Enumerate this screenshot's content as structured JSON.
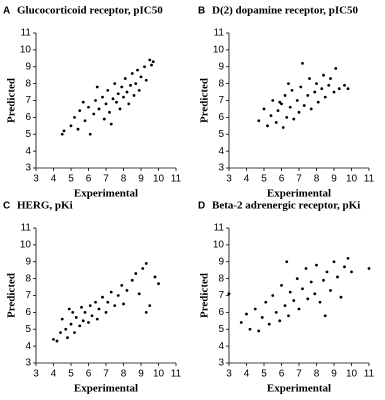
{
  "chart_data": [
    {
      "type": "scatter",
      "label": "A",
      "title": "Glucocorticoid receptor, pIC50",
      "xlabel": "Experimental",
      "ylabel": "Predicted",
      "color": "#000000",
      "xlim": [
        3,
        11
      ],
      "ylim": [
        3,
        11
      ],
      "xticks": [
        3,
        4,
        5,
        6,
        7,
        8,
        9,
        10,
        11
      ],
      "yticks": [
        3,
        4,
        5,
        6,
        7,
        8,
        9,
        10,
        11
      ],
      "x": [
        4.5,
        4.6,
        5.0,
        5.2,
        5.4,
        5.5,
        5.8,
        6.0,
        6.1,
        6.3,
        6.4,
        6.6,
        6.8,
        6.9,
        7.0,
        7.1,
        7.2,
        7.4,
        7.5,
        7.6,
        7.7,
        7.8,
        7.9,
        8.0,
        8.1,
        8.2,
        8.3,
        8.4,
        8.5,
        8.6,
        8.7,
        8.8,
        8.9,
        9.0,
        9.2,
        9.3,
        9.5,
        9.6,
        9.7,
        6.5,
        5.7,
        7.3
      ],
      "y": [
        5.0,
        5.2,
        5.5,
        6.0,
        5.3,
        6.4,
        5.8,
        6.6,
        5.0,
        6.2,
        7.0,
        6.5,
        7.2,
        5.9,
        6.8,
        7.6,
        6.3,
        7.1,
        8.0,
        6.9,
        7.4,
        6.5,
        7.8,
        7.2,
        8.3,
        7.5,
        6.8,
        7.9,
        8.6,
        7.3,
        8.0,
        8.8,
        7.6,
        8.4,
        9.0,
        8.2,
        9.4,
        9.1,
        9.3,
        7.8,
        6.9,
        5.6
      ]
    },
    {
      "type": "scatter",
      "label": "B",
      "title": "D(2) dopamine receptor, pIC50",
      "xlabel": "Experimental",
      "ylabel": "Predicted",
      "color": "#000000",
      "xlim": [
        3,
        11
      ],
      "ylim": [
        3,
        11
      ],
      "xticks": [
        3,
        4,
        5,
        6,
        7,
        8,
        9,
        10,
        11
      ],
      "yticks": [
        3,
        4,
        5,
        6,
        7,
        8,
        9,
        10,
        11
      ],
      "x": [
        4.7,
        5.0,
        5.2,
        5.4,
        5.5,
        5.7,
        5.8,
        6.0,
        6.1,
        6.2,
        6.3,
        6.5,
        6.6,
        6.7,
        6.9,
        7.0,
        7.1,
        7.2,
        7.3,
        7.5,
        7.6,
        7.7,
        7.9,
        8.0,
        8.1,
        8.3,
        8.4,
        8.5,
        8.7,
        8.8,
        9.0,
        9.1,
        9.3,
        9.6,
        9.8,
        6.4,
        5.9
      ],
      "y": [
        5.8,
        6.5,
        5.5,
        6.1,
        7.0,
        5.7,
        6.4,
        6.8,
        5.4,
        7.3,
        6.0,
        6.6,
        7.6,
        5.9,
        7.0,
        6.3,
        7.8,
        9.2,
        6.7,
        7.3,
        8.3,
        6.5,
        7.5,
        8.0,
        6.9,
        7.7,
        8.5,
        7.2,
        7.9,
        8.3,
        7.5,
        8.9,
        7.7,
        7.9,
        7.7,
        8.0,
        6.9
      ]
    },
    {
      "type": "scatter",
      "label": "C",
      "title": "HERG, pKi",
      "xlabel": "Experimental",
      "ylabel": "Predicted",
      "color": "#000000",
      "xlim": [
        3,
        11
      ],
      "ylim": [
        3,
        11
      ],
      "xticks": [
        3,
        4,
        5,
        6,
        7,
        8,
        9,
        10,
        11
      ],
      "yticks": [
        3,
        4,
        5,
        6,
        7,
        8,
        9,
        10,
        11
      ],
      "x": [
        4.0,
        4.2,
        4.4,
        4.5,
        4.7,
        4.8,
        5.0,
        5.1,
        5.2,
        5.3,
        5.5,
        5.6,
        5.7,
        5.8,
        6.0,
        6.1,
        6.2,
        6.4,
        6.5,
        6.6,
        6.8,
        7.0,
        7.1,
        7.3,
        7.5,
        7.7,
        7.9,
        8.0,
        8.2,
        8.5,
        8.7,
        8.9,
        9.1,
        9.3,
        9.5,
        9.8,
        10.0,
        9.3,
        4.9
      ],
      "y": [
        4.4,
        4.3,
        4.8,
        5.6,
        5.0,
        4.5,
        5.3,
        6.0,
        4.8,
        5.7,
        5.2,
        6.3,
        5.5,
        6.0,
        5.4,
        6.4,
        5.8,
        6.6,
        5.6,
        6.2,
        6.9,
        6.0,
        6.6,
        7.2,
        6.4,
        7.0,
        7.6,
        6.5,
        7.3,
        7.9,
        8.3,
        7.1,
        8.6,
        8.9,
        6.4,
        8.1,
        7.7,
        6.0,
        6.2
      ]
    },
    {
      "type": "scatter",
      "label": "D",
      "title": "Beta-2 adrenergic receptor, pKi",
      "xlabel": "Experimental",
      "ylabel": "Predicted",
      "color": "#000000",
      "xlim": [
        3,
        11
      ],
      "ylim": [
        3,
        11
      ],
      "xticks": [
        3,
        4,
        5,
        6,
        7,
        8,
        9,
        10,
        11
      ],
      "yticks": [
        3,
        4,
        5,
        6,
        7,
        8,
        9,
        10,
        11
      ],
      "x": [
        3.0,
        3.7,
        4.0,
        4.2,
        4.5,
        4.7,
        4.9,
        5.1,
        5.3,
        5.5,
        5.7,
        5.9,
        6.0,
        6.2,
        6.4,
        6.5,
        6.7,
        6.9,
        7.0,
        7.2,
        7.4,
        7.5,
        7.7,
        7.9,
        8.0,
        8.2,
        8.4,
        8.6,
        8.8,
        9.0,
        9.2,
        9.4,
        9.6,
        9.8,
        10.0,
        11.0,
        6.3,
        8.5
      ],
      "y": [
        7.1,
        5.4,
        5.9,
        5.0,
        6.2,
        4.9,
        5.7,
        6.6,
        5.3,
        7.0,
        6.0,
        5.5,
        7.6,
        6.4,
        5.8,
        7.2,
        6.7,
        8.0,
        6.2,
        7.4,
        8.6,
        6.8,
        7.8,
        7.1,
        8.8,
        6.6,
        7.9,
        8.4,
        7.3,
        9.0,
        8.1,
        6.9,
        8.7,
        9.2,
        8.4,
        8.6,
        9.0,
        5.8
      ]
    }
  ]
}
